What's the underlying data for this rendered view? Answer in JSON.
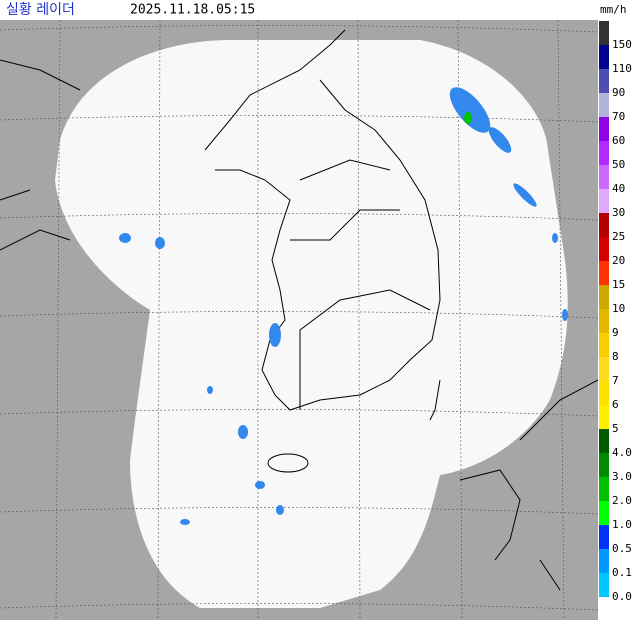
{
  "header": {
    "title": "실황 레이더",
    "timestamp": "2025.11.18.05:15",
    "unit": "mm/h"
  },
  "legend": [
    {
      "label": "150",
      "color": "#333333"
    },
    {
      "label": "110",
      "color": "#000390"
    },
    {
      "label": "90",
      "color": "#4c4eb1"
    },
    {
      "label": "70",
      "color": "#b3b4de"
    },
    {
      "label": "60",
      "color": "#9300e4"
    },
    {
      "label": "50",
      "color": "#b329ff"
    },
    {
      "label": "40",
      "color": "#c969ff"
    },
    {
      "label": "30",
      "color": "#dfa9ff"
    },
    {
      "label": "25",
      "color": "#b40000"
    },
    {
      "label": "20",
      "color": "#d20000"
    },
    {
      "label": "15",
      "color": "#ff3300"
    },
    {
      "label": "10",
      "color": "#ccaa00"
    },
    {
      "label": "9",
      "color": "#e0b900"
    },
    {
      "label": "8",
      "color": "#f9cd00"
    },
    {
      "label": "7",
      "color": "#ffdc1f"
    },
    {
      "label": "6",
      "color": "#ffe100"
    },
    {
      "label": "5",
      "color": "#ffee00"
    },
    {
      "label": "4.0",
      "color": "#005a00"
    },
    {
      "label": "3.0",
      "color": "#008c00"
    },
    {
      "label": "2.0",
      "color": "#00be00"
    },
    {
      "label": "1.0",
      "color": "#00ff00"
    },
    {
      "label": "0.5",
      "color": "#0033f5"
    },
    {
      "label": "0.1",
      "color": "#0099ff"
    },
    {
      "label": "0.0",
      "color": "#00c8ff"
    }
  ]
}
